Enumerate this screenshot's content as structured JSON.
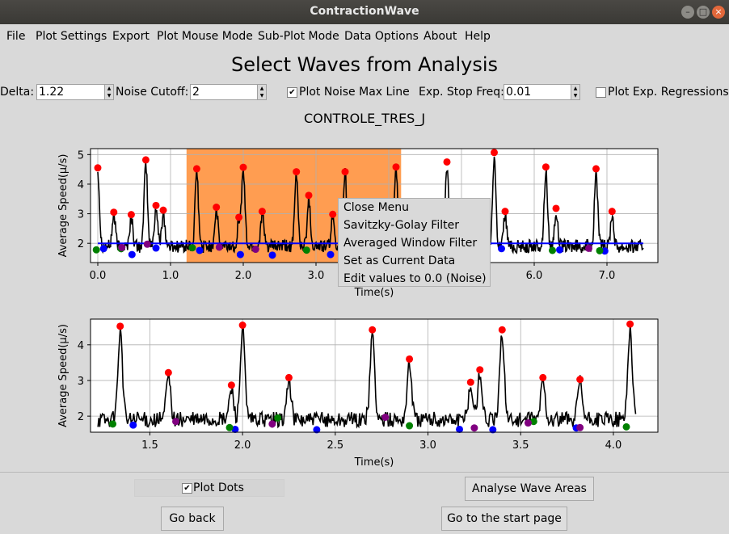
{
  "window": {
    "title": "ContractionWave"
  },
  "menu": [
    "File",
    "Plot Settings",
    "Export",
    "Plot Mouse Mode",
    "Sub-Plot Mode",
    "Data Options",
    "About",
    "Help"
  ],
  "heading": "Select Waves from Analysis",
  "controls": {
    "delta_label": "Delta:",
    "delta_value": "1.22",
    "noise_label": "Noise Cutoff:",
    "noise_value": "2",
    "plot_noise_label": "Plot Noise Max Line",
    "plot_noise_checked": true,
    "exp_stop_label": "Exp. Stop Freq:",
    "exp_stop_value": "0.01",
    "plot_exp_label": "Plot Exp. Regressions",
    "plot_exp_checked": false
  },
  "plot_title": "CONTROLE_TRES_J",
  "context_menu": [
    "Close Menu",
    "Savitzky-Golay Filter",
    "Averaged Window Filter",
    "Set as Current Data",
    "Edit values to 0.0 (Noise)"
  ],
  "footer": {
    "plot_dots_label": "Plot Dots",
    "plot_dots_checked": true,
    "analyse_button": "Analyse Wave Areas",
    "go_back_button": "Go back",
    "start_page_button": "Go to the start page"
  },
  "colors": {
    "max": "#ff0000",
    "first_min": "#0000ff",
    "last_min": "#008000",
    "mid": "#800080",
    "selection": "#ff8c32",
    "noise_line": "#0000ff"
  },
  "chart_data": [
    {
      "type": "line",
      "title": "",
      "xlabel": "Time(s)",
      "ylabel": "Average Speed(μ/s)",
      "xlim": [
        -0.1,
        7.7
      ],
      "ylim": [
        1.35,
        5.2
      ],
      "xticks": [
        "0.0",
        "1.0",
        "2.0",
        "3.0",
        "4.0",
        "5.0",
        "6.0",
        "7.0"
      ],
      "yticks": [
        "2",
        "3",
        "4",
        "5"
      ],
      "grid": true,
      "noise_line": 2.0,
      "selection_range": [
        1.22,
        4.17
      ],
      "series": [
        {
          "name": "",
          "values": [
            [
              0.0,
              4.55
            ],
            [
              0.22,
              3.05
            ],
            [
              0.46,
              2.97
            ],
            [
              0.66,
              4.82
            ],
            [
              0.8,
              3.28
            ],
            [
              0.9,
              3.12
            ],
            [
              1.36,
              4.52
            ],
            [
              1.63,
              3.22
            ],
            [
              2.0,
              4.57
            ],
            [
              2.26,
              3.08
            ],
            [
              2.73,
              4.42
            ],
            [
              2.9,
              3.62
            ],
            [
              3.4,
              4.42
            ],
            [
              4.1,
              4.58
            ],
            [
              4.8,
              4.75
            ],
            [
              5.45,
              5.07
            ],
            [
              5.6,
              3.08
            ],
            [
              6.16,
              4.58
            ],
            [
              6.3,
              3.18
            ],
            [
              6.85,
              4.52
            ],
            [
              7.07,
              3.08
            ]
          ]
        }
      ],
      "markers": {
        "max": [
          [
            0.0,
            4.55
          ],
          [
            0.22,
            3.05
          ],
          [
            0.46,
            2.97
          ],
          [
            0.66,
            4.82
          ],
          [
            0.8,
            3.28
          ],
          [
            0.9,
            3.12
          ],
          [
            1.36,
            4.52
          ],
          [
            1.63,
            3.22
          ],
          [
            1.94,
            2.88
          ],
          [
            2.0,
            4.57
          ],
          [
            2.26,
            3.08
          ],
          [
            2.73,
            4.42
          ],
          [
            2.9,
            3.62
          ],
          [
            3.4,
            4.42
          ],
          [
            3.23,
            2.98
          ],
          [
            4.1,
            4.58
          ],
          [
            4.8,
            4.75
          ],
          [
            5.45,
            5.07
          ],
          [
            5.6,
            3.08
          ],
          [
            6.16,
            4.58
          ],
          [
            6.3,
            3.18
          ],
          [
            6.85,
            4.52
          ],
          [
            7.07,
            3.08
          ]
        ],
        "first_min": [
          [
            0.08,
            1.82
          ],
          [
            0.47,
            1.62
          ],
          [
            0.8,
            1.84
          ],
          [
            1.4,
            1.76
          ],
          [
            1.96,
            1.62
          ],
          [
            2.4,
            1.6
          ],
          [
            3.2,
            1.62
          ],
          [
            5.55,
            1.82
          ],
          [
            6.35,
            1.78
          ],
          [
            6.97,
            1.74
          ]
        ],
        "last_min": [
          [
            -0.02,
            1.78
          ],
          [
            0.32,
            1.82
          ],
          [
            1.3,
            1.85
          ],
          [
            2.87,
            1.77
          ],
          [
            6.25,
            1.76
          ],
          [
            6.9,
            1.75
          ]
        ],
        "mid": [
          [
            0.33,
            1.86
          ],
          [
            0.68,
            1.97
          ],
          [
            1.67,
            1.87
          ],
          [
            2.17,
            1.8
          ],
          [
            6.75,
            1.83
          ]
        ]
      }
    },
    {
      "type": "line",
      "title": "",
      "xlabel": "Time(s)",
      "ylabel": "Average Speed(μ/s)",
      "xlim": [
        1.18,
        4.24
      ],
      "ylim": [
        1.55,
        4.72
      ],
      "xticks": [
        "1.5",
        "2.0",
        "2.5",
        "3.0",
        "3.5",
        "4.0"
      ],
      "yticks": [
        "2",
        "3",
        "4"
      ],
      "grid": true,
      "markers": {
        "max": [
          [
            1.34,
            4.52
          ],
          [
            1.6,
            3.22
          ],
          [
            1.94,
            2.87
          ],
          [
            2.0,
            4.55
          ],
          [
            2.25,
            3.08
          ],
          [
            2.7,
            4.42
          ],
          [
            2.9,
            3.6
          ],
          [
            3.23,
            2.95
          ],
          [
            3.28,
            3.3
          ],
          [
            3.4,
            4.42
          ],
          [
            3.62,
            3.08
          ],
          [
            3.82,
            3.03
          ],
          [
            4.09,
            4.58
          ]
        ],
        "first_min": [
          [
            1.41,
            1.75
          ],
          [
            1.96,
            1.63
          ],
          [
            2.4,
            1.62
          ],
          [
            3.17,
            1.63
          ],
          [
            3.35,
            1.62
          ],
          [
            3.8,
            1.67
          ]
        ],
        "last_min": [
          [
            1.3,
            1.78
          ],
          [
            1.93,
            1.68
          ],
          [
            2.19,
            1.95
          ],
          [
            2.9,
            1.73
          ],
          [
            3.57,
            1.85
          ],
          [
            4.07,
            1.7
          ]
        ],
        "mid": [
          [
            1.64,
            1.85
          ],
          [
            2.16,
            1.78
          ],
          [
            2.77,
            1.97
          ],
          [
            3.25,
            1.67
          ],
          [
            3.54,
            1.81
          ],
          [
            3.82,
            1.68
          ]
        ]
      }
    }
  ]
}
